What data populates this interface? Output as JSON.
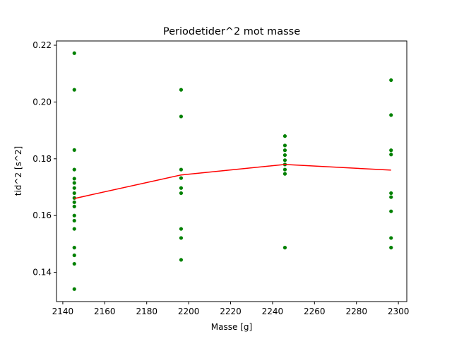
{
  "chart_data": {
    "type": "scatter",
    "title": "Periodetider^2 mot masse",
    "xlabel": "Masse [g]",
    "ylabel": "tid^2 [s^2]",
    "xlim": [
      2137,
      2304
    ],
    "ylim": [
      0.1297,
      0.2215
    ],
    "grid": false,
    "x_ticks": [
      {
        "value": 2140,
        "label": "2140"
      },
      {
        "value": 2160,
        "label": "2160"
      },
      {
        "value": 2180,
        "label": "2180"
      },
      {
        "value": 2200,
        "label": "2200"
      },
      {
        "value": 2220,
        "label": "2220"
      },
      {
        "value": 2240,
        "label": "2240"
      },
      {
        "value": 2260,
        "label": "2260"
      },
      {
        "value": 2280,
        "label": "2280"
      },
      {
        "value": 2300,
        "label": "2300"
      }
    ],
    "y_ticks": [
      {
        "value": 0.14,
        "label": "0.14"
      },
      {
        "value": 0.16,
        "label": "0.16"
      },
      {
        "value": 0.18,
        "label": "0.18"
      },
      {
        "value": 0.2,
        "label": "0.20"
      },
      {
        "value": 0.22,
        "label": "0.22"
      }
    ],
    "series": [
      {
        "kind": "scatter",
        "color": "#008000",
        "points": [
          [
            2145.5,
            0.2172
          ],
          [
            2145.5,
            0.2043
          ],
          [
            2145.5,
            0.1831
          ],
          [
            2145.5,
            0.1762
          ],
          [
            2145.5,
            0.173
          ],
          [
            2145.5,
            0.1715
          ],
          [
            2145.5,
            0.1697
          ],
          [
            2145.5,
            0.1679
          ],
          [
            2145.5,
            0.1662
          ],
          [
            2145.5,
            0.1647
          ],
          [
            2145.5,
            0.1632
          ],
          [
            2145.5,
            0.16
          ],
          [
            2145.5,
            0.1582
          ],
          [
            2145.5,
            0.1553
          ],
          [
            2145.5,
            0.1487
          ],
          [
            2145.5,
            0.146
          ],
          [
            2145.5,
            0.143
          ],
          [
            2145.5,
            0.1341
          ],
          [
            2196.4,
            0.2043
          ],
          [
            2196.4,
            0.1949
          ],
          [
            2196.4,
            0.1762
          ],
          [
            2196.4,
            0.1732
          ],
          [
            2196.4,
            0.1697
          ],
          [
            2196.4,
            0.1679
          ],
          [
            2196.4,
            0.1553
          ],
          [
            2196.4,
            0.1521
          ],
          [
            2196.4,
            0.1444
          ],
          [
            2245.9,
            0.188
          ],
          [
            2245.9,
            0.1847
          ],
          [
            2245.9,
            0.183
          ],
          [
            2245.9,
            0.1813
          ],
          [
            2245.9,
            0.1795
          ],
          [
            2245.9,
            0.178
          ],
          [
            2245.9,
            0.1762
          ],
          [
            2245.9,
            0.1747
          ],
          [
            2245.9,
            0.1487
          ],
          [
            2296.5,
            0.2077
          ],
          [
            2296.5,
            0.1954
          ],
          [
            2296.5,
            0.183
          ],
          [
            2296.5,
            0.1815
          ],
          [
            2296.5,
            0.1679
          ],
          [
            2296.5,
            0.1665
          ],
          [
            2296.5,
            0.1615
          ],
          [
            2296.5,
            0.1521
          ],
          [
            2296.5,
            0.1487
          ]
        ]
      },
      {
        "kind": "line",
        "color": "#ff0000",
        "points": [
          [
            2145.5,
            0.166
          ],
          [
            2196.4,
            0.1743
          ],
          [
            2245.9,
            0.178
          ],
          [
            2296.5,
            0.176
          ]
        ]
      }
    ]
  }
}
